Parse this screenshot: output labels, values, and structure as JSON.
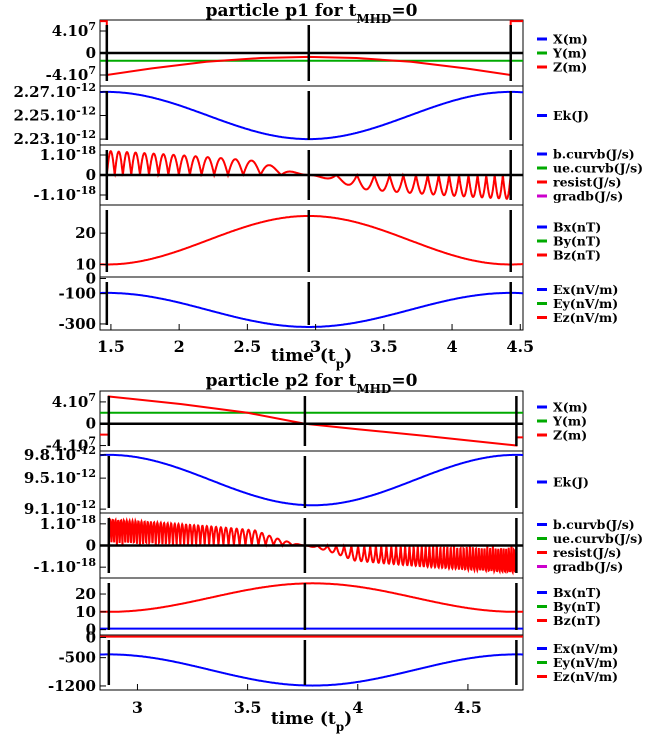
{
  "chart_data": [
    {
      "type": "line",
      "title": "particle p1 for t_MHD=0",
      "title_main": "particle p1 for t",
      "title_sub": "MHD",
      "title_tail": "=0",
      "xlabel": "time (t_p)",
      "xlabel_main": "time (t",
      "xlabel_sub": "p",
      "xlabel_tail": ")",
      "xlim": [
        1.42,
        4.52
      ],
      "xticks": [
        1.5,
        2,
        2.5,
        3,
        3.5,
        4,
        4.5
      ],
      "xtick_labels": [
        "1.5",
        "2",
        "2.5",
        "3",
        "3.5",
        "4",
        "4.5"
      ],
      "vlines": [
        1.47,
        2.95,
        4.43
      ],
      "panels": [
        {
          "yticks": [
            {
              "label": "4.10",
              "sup": "7",
              "value": 40000000
            },
            {
              "label": "0",
              "sup": "",
              "value": 0
            },
            {
              "label": "-4.10",
              "sup": "7",
              "value": -40000000
            }
          ],
          "ylim": [
            -60000000,
            60000000
          ],
          "legend": [
            {
              "name": "X(m)",
              "color": "#0000ff"
            },
            {
              "name": "Y(m)",
              "color": "#00aa00"
            },
            {
              "name": "Z(m)",
              "color": "#ff0000"
            }
          ],
          "series": [
            {
              "name": "X(m)",
              "color": "#0000ff",
              "x": [
                1.42,
                4.52
              ],
              "y": [
                0,
                0
              ]
            },
            {
              "name": "Y(m)",
              "color": "#00aa00",
              "x": [
                1.42,
                4.52
              ],
              "y": [
                -14000000,
                -14000000
              ]
            },
            {
              "name": "Z(m)",
              "color": "#ff0000",
              "x": [
                1.42,
                1.47,
                1.47,
                1.8,
                2.2,
                2.6,
                2.95,
                3.3,
                3.7,
                4.1,
                4.43,
                4.43,
                4.52
              ],
              "y": [
                58000000,
                58000000,
                -40000000,
                -28000000,
                -16000000,
                -9000000,
                -7000000,
                -9000000,
                -16000000,
                -28000000,
                -40000000,
                58000000,
                58000000
              ]
            }
          ]
        },
        {
          "yticks": [
            {
              "label": "2.27.10",
              "sup": "-12",
              "value": 2.27e-12
            },
            {
              "label": "2.25.10",
              "sup": "-12",
              "value": 2.25e-12
            },
            {
              "label": "2.23.10",
              "sup": "-12",
              "value": 2.23e-12
            }
          ],
          "ylim": [
            2.225e-12,
            2.275e-12
          ],
          "legend": [
            {
              "name": "Ek(J)",
              "color": "#0000ff"
            }
          ],
          "series": [
            {
              "name": "Ek(J)",
              "color": "#0000ff",
              "x": [
                1.42,
                1.47,
                4.43,
                4.52
              ],
              "y": [
                2.27e-12,
                2.27e-12,
                2.27e-12,
                2.268e-12
              ],
              "shape": "cosine",
              "min": 2.23e-12
            }
          ]
        },
        {
          "yticks": [
            {
              "label": "1.10",
              "sup": "-18",
              "value": 1e-18
            },
            {
              "label": "0",
              "sup": "",
              "value": 0
            },
            {
              "label": "-1.10",
              "sup": "-18",
              "value": -1e-18
            }
          ],
          "ylim": [
            -1.5e-18,
            1.5e-18
          ],
          "legend": [
            {
              "name": "b.curvb(J/s)",
              "color": "#0000ff"
            },
            {
              "name": "ue.curvb(J/s)",
              "color": "#00aa00"
            },
            {
              "name": "resist(J/s)",
              "color": "#ff0000"
            },
            {
              "name": "gradb(J/s)",
              "color": "#cc00cc"
            }
          ],
          "series": [
            {
              "name": "resist(J/s)",
              "color": "#ff0000",
              "shape": "oscillation",
              "amp": 1.2e-18
            }
          ]
        },
        {
          "yticks": [
            {
              "label": "20",
              "sup": "",
              "value": 20
            },
            {
              "label": "10",
              "sup": "",
              "value": 10
            }
          ],
          "ylim": [
            6,
            29
          ],
          "legend": [
            {
              "name": "Bx(nT)",
              "color": "#0000ff"
            },
            {
              "name": "By(nT)",
              "color": "#00aa00"
            },
            {
              "name": "Bz(nT)",
              "color": "#ff0000"
            }
          ],
          "series": [
            {
              "name": "Bz(nT)",
              "color": "#ff0000",
              "shape": "bump",
              "base": 10,
              "peak": 25.5
            }
          ]
        },
        {
          "yticks": [
            {
              "label": "0",
              "sup": "",
              "value": 0
            },
            {
              "label": "-100",
              "sup": "",
              "value": -100
            },
            {
              "label": "-300",
              "sup": "",
              "value": -300
            }
          ],
          "ylim": [
            -340,
            10
          ],
          "legend": [
            {
              "name": "Ex(nV/m)",
              "color": "#0000ff"
            },
            {
              "name": "Ey(nV/m)",
              "color": "#00aa00"
            },
            {
              "name": "Ez(nV/m)",
              "color": "#ff0000"
            }
          ],
          "series": [
            {
              "name": "Ex(nV/m)",
              "color": "#0000ff",
              "shape": "dip",
              "base": -95,
              "min": -320
            }
          ]
        }
      ]
    },
    {
      "type": "line",
      "title": "particle p2 for t_MHD=0",
      "title_main": "particle p2 for t",
      "title_sub": "MHD",
      "title_tail": "=0",
      "xlabel": "time (t_p)",
      "xlabel_main": "time (t",
      "xlabel_sub": "p",
      "xlabel_tail": ")",
      "xlim": [
        2.83,
        4.75
      ],
      "xticks": [
        3,
        3.5,
        4,
        4.5
      ],
      "xtick_labels": [
        "3",
        "3.5",
        "4",
        "4.5"
      ],
      "vlines": [
        2.87,
        3.76,
        4.72
      ],
      "panels": [
        {
          "yticks": [
            {
              "label": "4.10",
              "sup": "7",
              "value": 40000000
            },
            {
              "label": "0",
              "sup": "",
              "value": 0
            },
            {
              "label": "-4.10",
              "sup": "7",
              "value": -40000000
            }
          ],
          "ylim": [
            -50000000,
            60000000
          ],
          "legend": [
            {
              "name": "X(m)",
              "color": "#0000ff"
            },
            {
              "name": "Y(m)",
              "color": "#00aa00"
            },
            {
              "name": "Z(m)",
              "color": "#ff0000"
            }
          ],
          "series": [
            {
              "name": "X(m)",
              "color": "#0000ff",
              "x": [
                2.83,
                4.75
              ],
              "y": [
                0,
                0
              ]
            },
            {
              "name": "Y(m)",
              "color": "#00aa00",
              "x": [
                2.83,
                4.75
              ],
              "y": [
                20000000,
                20000000
              ]
            },
            {
              "name": "Z(m)",
              "color": "#ff0000",
              "x": [
                2.83,
                2.87,
                2.87,
                3.2,
                3.5,
                3.76,
                4.0,
                4.3,
                4.6,
                4.72,
                4.72,
                4.75
              ],
              "y": [
                -20000000,
                -20000000,
                50000000,
                36000000,
                20000000,
                0,
                -10000000,
                -22000000,
                -35000000,
                -40000000,
                -25000000,
                -25000000
              ]
            }
          ]
        },
        {
          "yticks": [
            {
              "label": "9.8.10",
              "sup": "-12",
              "value": 9.8e-12
            },
            {
              "label": "9.5.10",
              "sup": "-12",
              "value": 9.5e-12
            },
            {
              "label": "9.1.10",
              "sup": "-12",
              "value": 9.1e-12
            }
          ],
          "ylim": [
            9.05e-12,
            9.85e-12
          ],
          "legend": [
            {
              "name": "Ek(J)",
              "color": "#0000ff"
            }
          ],
          "series": [
            {
              "name": "Ek(J)",
              "color": "#0000ff",
              "shape": "cosine",
              "max": 9.8e-12,
              "min": 9.15e-12
            }
          ]
        },
        {
          "yticks": [
            {
              "label": "1.10",
              "sup": "-18",
              "value": 1e-18
            },
            {
              "label": "0",
              "sup": "",
              "value": 0
            },
            {
              "label": "-1.10",
              "sup": "-18",
              "value": -1e-18
            }
          ],
          "ylim": [
            -1.5e-18,
            1.5e-18
          ],
          "legend": [
            {
              "name": "b.curvb(J/s)",
              "color": "#0000ff"
            },
            {
              "name": "ue.curvb(J/s)",
              "color": "#00aa00"
            },
            {
              "name": "resist(J/s)",
              "color": "#ff0000"
            },
            {
              "name": "gradb(J/s)",
              "color": "#cc00cc"
            }
          ],
          "series": [
            {
              "name": "resist(J/s)",
              "color": "#ff0000",
              "shape": "oscillation",
              "amp": 1.2e-18
            }
          ]
        },
        {
          "yticks": [
            {
              "label": "20",
              "sup": "",
              "value": 20
            },
            {
              "label": "10",
              "sup": "",
              "value": 10
            },
            {
              "label": "0",
              "sup": "",
              "value": 0
            }
          ],
          "ylim": [
            -3,
            29
          ],
          "legend": [
            {
              "name": "Bx(nT)",
              "color": "#0000ff"
            },
            {
              "name": "By(nT)",
              "color": "#00aa00"
            },
            {
              "name": "Bz(nT)",
              "color": "#ff0000"
            }
          ],
          "series": [
            {
              "name": "Bz(nT)",
              "color": "#ff0000",
              "shape": "bump",
              "base": 10,
              "peak": 26
            },
            {
              "name": "Bx(nT)",
              "color": "#0000ff",
              "x": [
                2.83,
                4.75
              ],
              "y": [
                0.6,
                0.6
              ]
            }
          ]
        },
        {
          "yticks": [
            {
              "label": "0",
              "sup": "",
              "value": 0
            },
            {
              "label": "-500",
              "sup": "",
              "value": -500
            },
            {
              "label": "-1200",
              "sup": "",
              "value": -1200
            }
          ],
          "ylim": [
            -1300,
            60
          ],
          "legend": [
            {
              "name": "Ex(nV/m)",
              "color": "#0000ff"
            },
            {
              "name": "Ey(nV/m)",
              "color": "#00aa00"
            },
            {
              "name": "Ez(nV/m)",
              "color": "#ff0000"
            }
          ],
          "series": [
            {
              "name": "Ex(nV/m)",
              "color": "#0000ff",
              "shape": "dip",
              "base": -420,
              "min": -1190
            },
            {
              "name": "Ez(nV/m)",
              "color": "#ff0000",
              "x": [
                2.83,
                4.75
              ],
              "y": [
                20,
                20
              ]
            }
          ]
        }
      ]
    }
  ]
}
